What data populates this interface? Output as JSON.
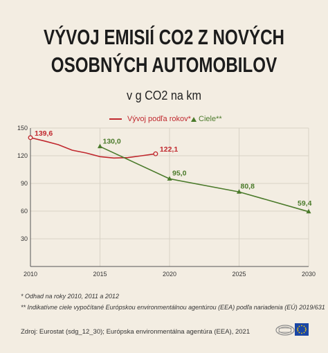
{
  "title_lines": [
    "VÝVOJ EMISIÍ CO2 Z NOVÝCH",
    "OSOBNÝCH AUTOMOBILOV"
  ],
  "subtitle": "v g CO2 na km",
  "legend": {
    "actual": "Vývoj podľa rokov*",
    "targets": "Ciele**"
  },
  "colors": {
    "actual": "#c0272d",
    "targets": "#4a7a2a",
    "grid": "#d8d2c6",
    "axis": "#555555"
  },
  "notes": [
    "* Odhad na roky 2010, 2011 a 2012",
    "** Indikatívne ciele vypočítané Európskou environmentálnou agentúrou (EEA) podľa nariadenia (EÚ) 2019/631"
  ],
  "source": "Zdroj: Eurostat (sdg_12_30); Európska environmentálna agentúra (EEA), 2021",
  "chart_data": {
    "type": "line",
    "xlim": [
      2010,
      2030
    ],
    "ylim": [
      0,
      150
    ],
    "x_ticks": [
      2010,
      2015,
      2020,
      2025,
      2030
    ],
    "y_ticks": [
      30,
      60,
      90,
      120,
      150
    ],
    "grid": true,
    "series": [
      {
        "name": "Vývoj podľa rokov*",
        "marker": "circle",
        "points": [
          {
            "x": 2010,
            "y": 139.6,
            "label": "139,6"
          },
          {
            "x": 2011,
            "y": 136.0
          },
          {
            "x": 2012,
            "y": 132.0
          },
          {
            "x": 2013,
            "y": 126.0
          },
          {
            "x": 2014,
            "y": 123.0
          },
          {
            "x": 2015,
            "y": 119.0
          },
          {
            "x": 2016,
            "y": 117.5
          },
          {
            "x": 2017,
            "y": 118.0
          },
          {
            "x": 2018,
            "y": 120.0
          },
          {
            "x": 2019,
            "y": 122.1,
            "label": "122,1"
          }
        ]
      },
      {
        "name": "Ciele**",
        "marker": "triangle",
        "points": [
          {
            "x": 2015,
            "y": 130.0,
            "label": "130,0"
          },
          {
            "x": 2020,
            "y": 95.0,
            "label": "95,0"
          },
          {
            "x": 2025,
            "y": 80.8,
            "label": "80,8"
          },
          {
            "x": 2030,
            "y": 59.4,
            "label": "59,4"
          }
        ]
      }
    ]
  }
}
